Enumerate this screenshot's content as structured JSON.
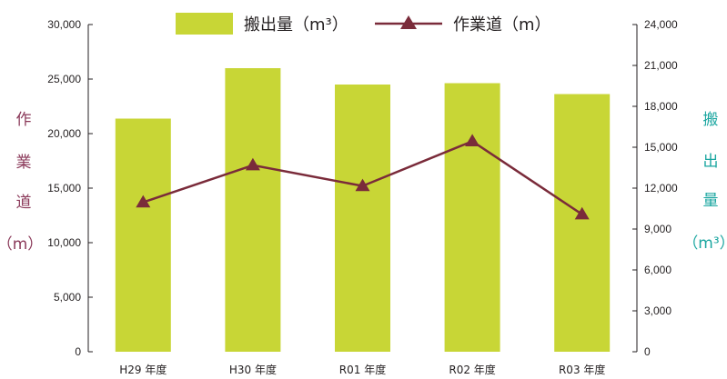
{
  "chart_data": {
    "type": "bar",
    "categories": [
      "H29 年度",
      "H30 年度",
      "R01 年度",
      "R02 年度",
      "R03 年度"
    ],
    "series": [
      {
        "name": "搬出量（m³）",
        "kind": "bar",
        "axis": "right",
        "values": [
          17100,
          20800,
          19600,
          19700,
          18900
        ],
        "color": "#c8d636"
      },
      {
        "name": "作業道（m）",
        "kind": "line",
        "axis": "left",
        "values": [
          13700,
          17100,
          15200,
          19300,
          12600
        ],
        "color": "#7a2b3a"
      }
    ],
    "y_left": {
      "label_chars": [
        "作",
        "業",
        "道",
        "（m）"
      ],
      "color": "#8b3a5a",
      "ticks": [
        "0",
        "5,000",
        "10,000",
        "15,000",
        "20,000",
        "25,000",
        "30,000"
      ],
      "ylim": [
        0,
        30000
      ]
    },
    "y_right": {
      "label_chars": [
        "搬",
        "出",
        "量",
        "（m³）"
      ],
      "color": "#1aa6a0",
      "ticks": [
        "0",
        "3,000",
        "6,000",
        "9,000",
        "12,000",
        "15,000",
        "18,000",
        "21,000",
        "24,000"
      ],
      "ylim": [
        0,
        24000
      ]
    },
    "legend": {
      "position": "top-center",
      "bar_label": "搬出量（m³）",
      "line_label": "作業道（m）"
    },
    "grid": false
  }
}
